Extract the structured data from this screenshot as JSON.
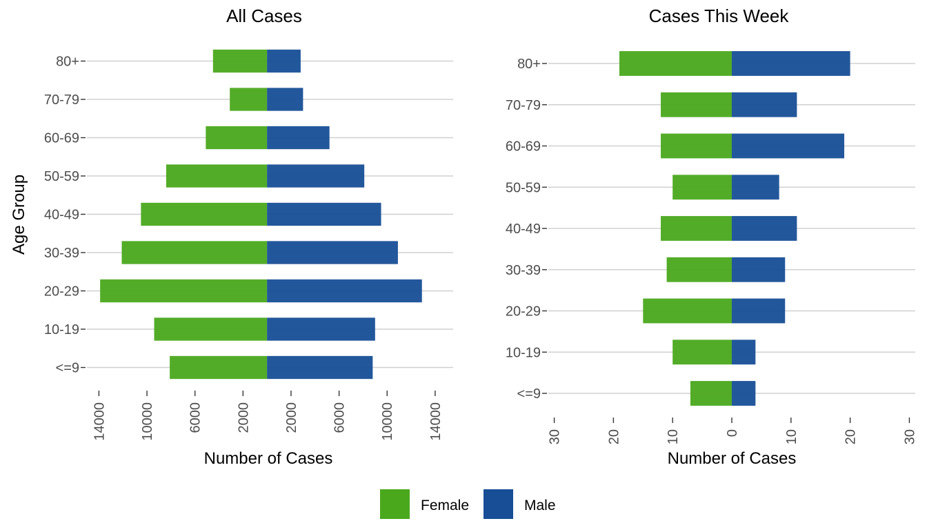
{
  "chart_data": [
    {
      "type": "bar",
      "orientation": "horizontal",
      "layout": "diverging",
      "title": "All Cases",
      "xlabel": "Number of Cases",
      "ylabel": "Age Group",
      "categories": [
        "<=9",
        "10-19",
        "20-29",
        "30-39",
        "40-49",
        "50-59",
        "60-69",
        "70-79",
        "80+"
      ],
      "series": [
        {
          "name": "Female",
          "values": [
            8100,
            9400,
            13900,
            12100,
            10500,
            8400,
            5100,
            3100,
            4500
          ]
        },
        {
          "name": "Male",
          "values": [
            8800,
            9000,
            12900,
            10900,
            9500,
            8100,
            5200,
            3000,
            2800
          ]
        }
      ],
      "xlim": [
        -15000,
        15500
      ],
      "xticks": [
        -14000,
        -10000,
        -6000,
        -2000,
        2000,
        6000,
        10000,
        14000
      ],
      "xtick_labels": [
        "14000",
        "10000",
        "6000",
        "2000",
        "2000",
        "6000",
        "10000",
        "14000"
      ],
      "grid": "horizontal"
    },
    {
      "type": "bar",
      "orientation": "horizontal",
      "layout": "diverging",
      "title": "Cases This Week",
      "xlabel": "Number of Cases",
      "ylabel": "",
      "categories": [
        "<=9",
        "10-19",
        "20-29",
        "30-39",
        "40-49",
        "50-59",
        "60-69",
        "70-79",
        "80+"
      ],
      "series": [
        {
          "name": "Female",
          "values": [
            7,
            10,
            15,
            11,
            12,
            10,
            12,
            12,
            19
          ]
        },
        {
          "name": "Male",
          "values": [
            4,
            4,
            9,
            9,
            11,
            8,
            19,
            11,
            20
          ]
        }
      ],
      "xlim": [
        -31,
        31
      ],
      "xticks": [
        -30,
        -20,
        -10,
        0,
        10,
        20,
        30
      ],
      "xtick_labels": [
        "30",
        "20",
        "10",
        "0",
        "10",
        "20",
        "30"
      ],
      "grid": "horizontal"
    }
  ],
  "legend": {
    "position": "bottom",
    "items": [
      {
        "label": "Female",
        "color": "#4aa81c"
      },
      {
        "label": "Male",
        "color": "#174e96"
      }
    ]
  }
}
